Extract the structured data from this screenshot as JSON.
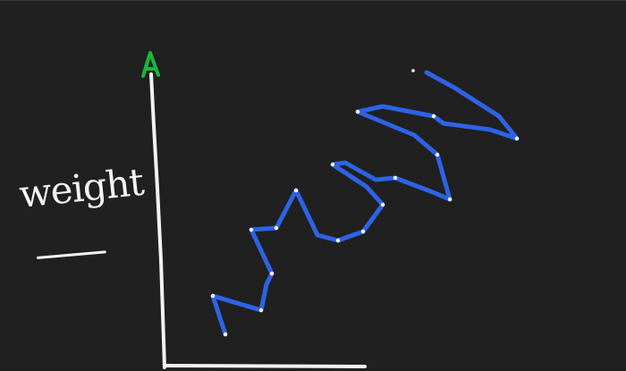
{
  "diagram": {
    "y_axis_label": "weight",
    "colors": {
      "background": "#202020",
      "axis": "#f2f2f2",
      "arrow_head": "#19b63c",
      "curve": "#2e63e6",
      "points": "#ffffff"
    }
  }
}
